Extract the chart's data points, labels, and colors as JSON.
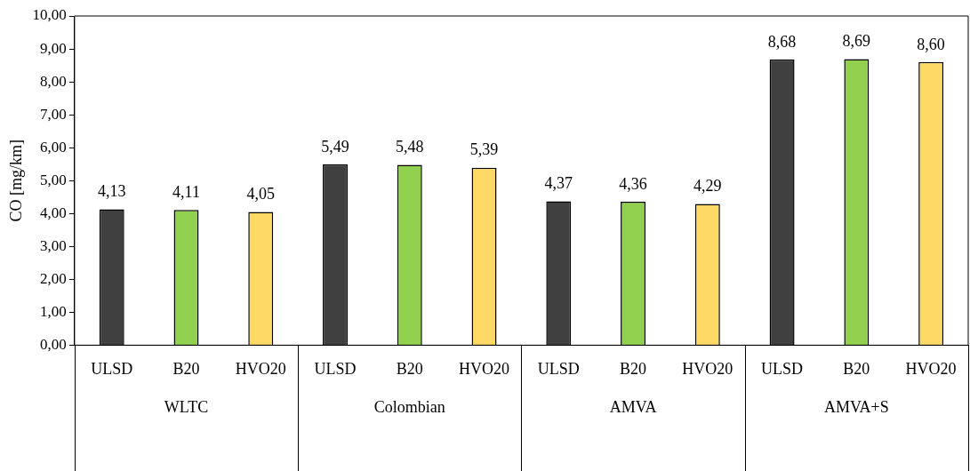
{
  "chart_data": {
    "type": "bar",
    "ylabel": "CO [mg/km]",
    "categories": [
      "WLTC",
      "Colombian",
      "AMVA",
      "AMVA+S"
    ],
    "series": [
      {
        "name": "ULSD",
        "color": "#404040",
        "values": [
          4.13,
          5.49,
          4.37,
          8.68
        ],
        "value_labels": [
          "4,13",
          "5,49",
          "4,37",
          "8,68"
        ]
      },
      {
        "name": "B20",
        "color": "#92d050",
        "values": [
          4.11,
          5.48,
          4.36,
          8.69
        ],
        "value_labels": [
          "4,11",
          "5,48",
          "4,36",
          "8,69"
        ]
      },
      {
        "name": "HVO20",
        "color": "#ffd966",
        "values": [
          4.05,
          5.39,
          4.29,
          8.6
        ],
        "value_labels": [
          "4,05",
          "5,39",
          "4,29",
          "8,60"
        ]
      }
    ],
    "ylim": [
      0,
      10
    ],
    "yticks": [
      {
        "value": 0,
        "label": "0,00"
      },
      {
        "value": 1,
        "label": "1,00"
      },
      {
        "value": 2,
        "label": "2,00"
      },
      {
        "value": 3,
        "label": "3,00"
      },
      {
        "value": 4,
        "label": "4,00"
      },
      {
        "value": 5,
        "label": "5,00"
      },
      {
        "value": 6,
        "label": "6,00"
      },
      {
        "value": 7,
        "label": "7,00"
      },
      {
        "value": 8,
        "label": "8,00"
      },
      {
        "value": 9,
        "label": "9,00"
      },
      {
        "value": 10,
        "label": "10,00"
      }
    ],
    "grid": false,
    "legend": false
  }
}
